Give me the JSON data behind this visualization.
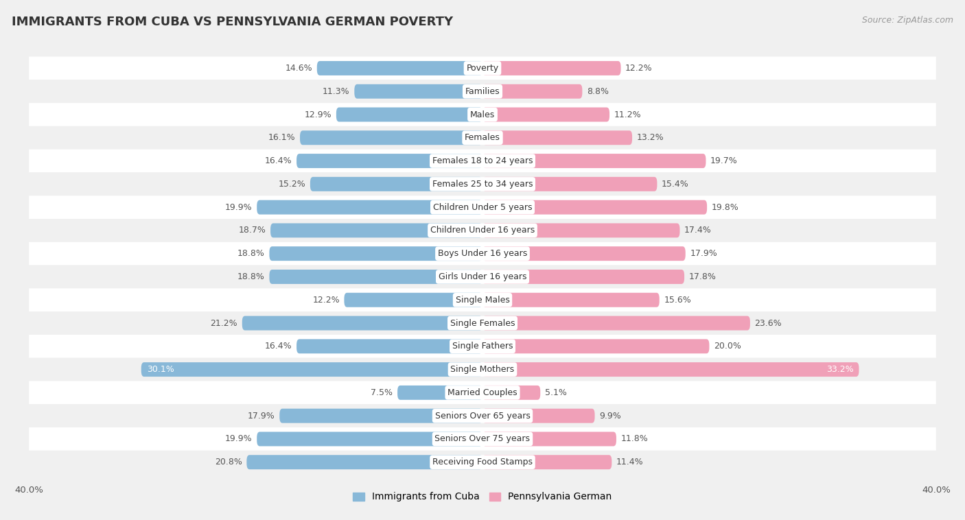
{
  "title": "IMMIGRANTS FROM CUBA VS PENNSYLVANIA GERMAN POVERTY",
  "source": "Source: ZipAtlas.com",
  "categories": [
    "Poverty",
    "Families",
    "Males",
    "Females",
    "Females 18 to 24 years",
    "Females 25 to 34 years",
    "Children Under 5 years",
    "Children Under 16 years",
    "Boys Under 16 years",
    "Girls Under 16 years",
    "Single Males",
    "Single Females",
    "Single Fathers",
    "Single Mothers",
    "Married Couples",
    "Seniors Over 65 years",
    "Seniors Over 75 years",
    "Receiving Food Stamps"
  ],
  "cuba_values": [
    14.6,
    11.3,
    12.9,
    16.1,
    16.4,
    15.2,
    19.9,
    18.7,
    18.8,
    18.8,
    12.2,
    21.2,
    16.4,
    30.1,
    7.5,
    17.9,
    19.9,
    20.8
  ],
  "pa_german_values": [
    12.2,
    8.8,
    11.2,
    13.2,
    19.7,
    15.4,
    19.8,
    17.4,
    17.9,
    17.8,
    15.6,
    23.6,
    20.0,
    33.2,
    5.1,
    9.9,
    11.8,
    11.4
  ],
  "cuba_color": "#88B8D8",
  "pa_german_color": "#F0A0B8",
  "row_colors": [
    "#ffffff",
    "#f0f0f0"
  ],
  "background_color": "#f0f0f0",
  "xlim": 40.0,
  "legend_labels": [
    "Immigrants from Cuba",
    "Pennsylvania German"
  ],
  "bar_height": 0.62,
  "label_fontsize": 9.0,
  "cat_fontsize": 9.0,
  "title_fontsize": 13,
  "source_fontsize": 9
}
